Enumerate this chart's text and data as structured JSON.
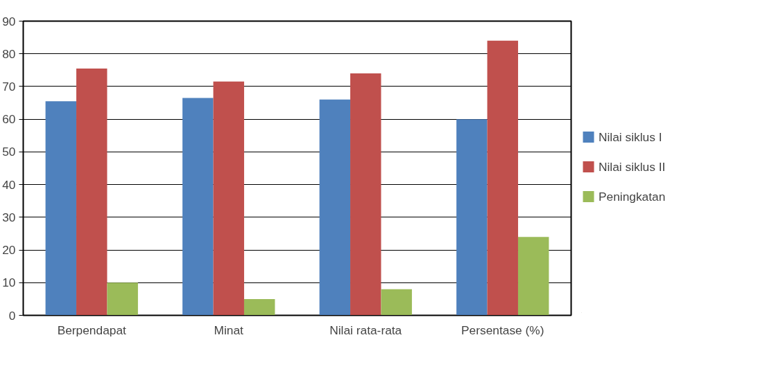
{
  "chart_data": {
    "type": "bar",
    "categories": [
      "Berpendapat",
      "Minat",
      "Nilai rata-rata",
      "Persentase (%)"
    ],
    "series": [
      {
        "name": "Nilai siklus I",
        "color": "#4f81bd",
        "values": [
          65.5,
          66.5,
          66,
          60
        ]
      },
      {
        "name": "Nilai siklus II",
        "color": "#c0504d",
        "values": [
          75.5,
          71.5,
          74,
          84
        ]
      },
      {
        "name": "Peningkatan",
        "color": "#9bbb59",
        "values": [
          10,
          5,
          8,
          24
        ]
      }
    ],
    "ylim": [
      0,
      90
    ],
    "yticks": [
      0,
      10,
      20,
      30,
      40,
      50,
      60,
      70,
      80,
      90
    ],
    "grid": "y",
    "legend": "right"
  }
}
